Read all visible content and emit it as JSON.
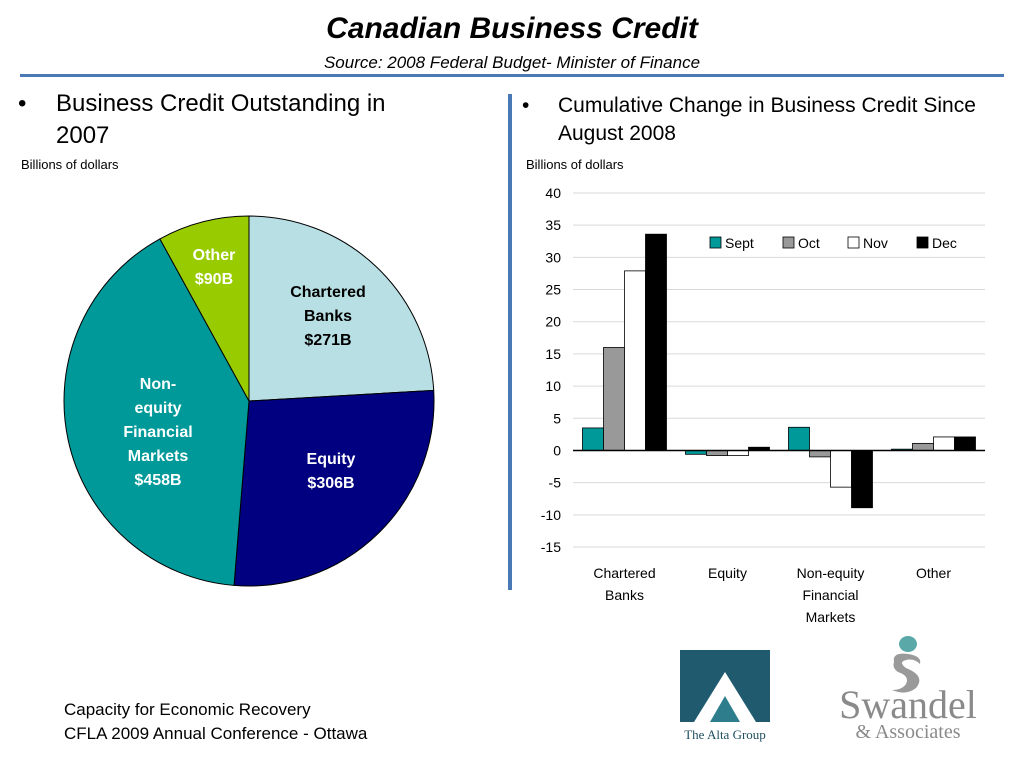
{
  "header": {
    "title": "Canadian Business Credit",
    "subtitle": "Source: 2008 Federal Budget- Minister of Finance"
  },
  "left_panel": {
    "bullet": "•",
    "heading": "Business Credit Outstanding in 2007",
    "units": "Billions of dollars"
  },
  "right_panel": {
    "bullet": "•",
    "heading": "Cumulative Change in Business Credit Since August 2008",
    "units": "Billions of dollars"
  },
  "chart_data": [
    {
      "type": "pie",
      "unit": "Billions of dollars",
      "slices": [
        {
          "label": "Chartered Banks",
          "value": 271,
          "value_label": "$271B",
          "color": "#b8e0e4",
          "label_color": "#000000"
        },
        {
          "label": "Equity",
          "value": 306,
          "value_label": "$306B",
          "color": "#000080",
          "label_color": "#ffffff"
        },
        {
          "label": "Non-equity Financial Markets",
          "value": 458,
          "value_label": "$458B",
          "color": "#009999",
          "label_color": "#ffffff"
        },
        {
          "label": "Other",
          "value": 90,
          "value_label": "$90B",
          "color": "#99cc00",
          "label_color": "#ffffff"
        }
      ]
    },
    {
      "type": "bar",
      "unit": "Billions of dollars",
      "categories": [
        "Chartered Banks",
        "Equity",
        "Non-equity Financial Markets",
        "Other"
      ],
      "category_lines": [
        [
          "Chartered",
          "Banks"
        ],
        [
          "Equity"
        ],
        [
          "Non-equity",
          "Financial",
          "Markets"
        ],
        [
          "Other"
        ]
      ],
      "series": [
        {
          "name": "Sept",
          "color": "#009999",
          "values": [
            3.5,
            -0.6,
            3.6,
            0.2
          ]
        },
        {
          "name": "Oct",
          "color": "#999999",
          "values": [
            16.0,
            -0.8,
            -1.0,
            1.1
          ]
        },
        {
          "name": "Nov",
          "color": "#ffffff",
          "values": [
            27.9,
            -0.8,
            -5.7,
            2.1
          ]
        },
        {
          "name": "Dec",
          "color": "#000000",
          "values": [
            33.6,
            0.5,
            -8.9,
            2.1
          ]
        }
      ],
      "ylim": [
        -15,
        40
      ],
      "yticks": [
        40,
        35,
        30,
        25,
        20,
        15,
        10,
        5,
        0,
        -5,
        -10,
        -15
      ],
      "grid": true,
      "legend_position": "top-right"
    }
  ],
  "footer": {
    "line1": "Capacity for Economic Recovery",
    "line2": "CFLA 2009 Annual Conference - Ottawa"
  },
  "logos": {
    "alta": "The Alta Group",
    "swandel": "Swandel & Associates"
  }
}
